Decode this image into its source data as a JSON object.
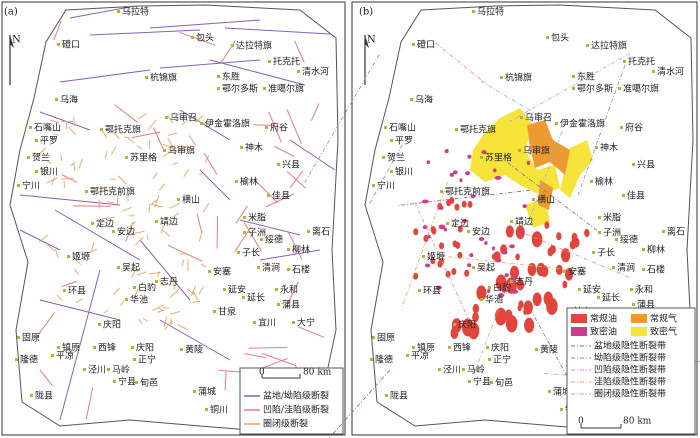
{
  "map": {
    "north": "N",
    "places": [
      "乌拉特",
      "磴口",
      "包头",
      "达拉特旗",
      "托克托",
      "清水河",
      "杭锦旗",
      "东胜",
      "鄂尔多斯",
      "准噶尔旗",
      "乌海",
      "乌审召",
      "伊金霍洛旗",
      "府谷",
      "石嘴山",
      "鄂托克旗",
      "平罗",
      "神木",
      "乌审旗",
      "苏里格",
      "贺兰",
      "兴县",
      "银川",
      "宁川",
      "榆林",
      "鄂托克前旗",
      "佳县",
      "横山",
      "米脂",
      "定边",
      "靖边",
      "安边",
      "离石",
      "子洲",
      "绥德",
      "柳林",
      "姬塬",
      "子长",
      "吴起",
      "清涧",
      "安塞",
      "石楼",
      "志丹",
      "白豹",
      "环县",
      "延安",
      "永和",
      "华池",
      "延长",
      "蒲县",
      "甘泉",
      "庆阳",
      "宜川",
      "大宁",
      "固原",
      "镇原",
      "西锋",
      "庆阳",
      "黄陵",
      "平凉",
      "隆德",
      "正宁",
      "泾川",
      "马岭",
      "宁县",
      "旬邑",
      "蒲城",
      "陇县",
      "铜川"
    ],
    "scale": {
      "zero": "0",
      "length": "80 km"
    },
    "panels": [
      {
        "label": "(a)",
        "legend": [
          "盆地/坳陷级断裂",
          "凹陷/洼陷级断裂",
          "圈闭级断裂"
        ]
      },
      {
        "label": "(b)",
        "extra_places": [
          "富县",
          "洛川"
        ],
        "legend_fills": [
          "常规油",
          "常规气",
          "致密油",
          "致密气"
        ],
        "legend_lines": [
          "盆地级隐性断裂带",
          "坳陷级隐性断裂带",
          "凹陷级隐性断裂带",
          "洼陷级隐性断裂带",
          "圈闭级隐性断裂带"
        ]
      }
    ]
  }
}
